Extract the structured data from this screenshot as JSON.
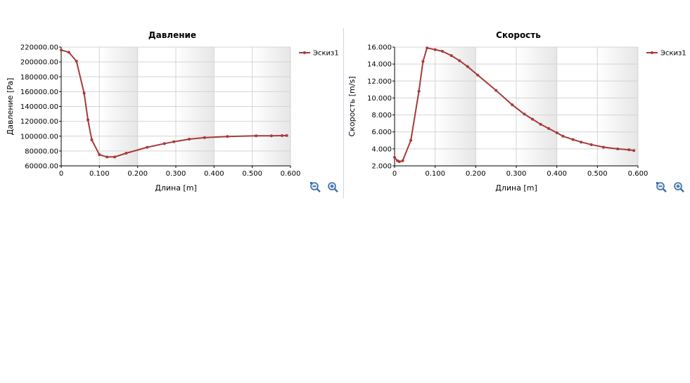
{
  "charts": [
    {
      "id": "pressure",
      "zoom_out_icon": "zoom-out-icon",
      "zoom_in_icon": "zoom-in-icon"
    },
    {
      "id": "velocity",
      "zoom_out_icon": "zoom-out-icon",
      "zoom_in_icon": "zoom-in-icon"
    }
  ],
  "colors": {
    "series": "#a83a3a",
    "grid": "#d4d4d4",
    "band": "#e6e6e6"
  },
  "chart_data": [
    {
      "type": "line",
      "title": "Давление",
      "xlabel": "Длина [m]",
      "ylabel": "Давление [Pa]",
      "xlim": [
        0,
        0.6
      ],
      "ylim": [
        60000,
        220000
      ],
      "xticks": [
        "0",
        "0.100",
        "0.200",
        "0.300",
        "0.400",
        "0.500",
        "0.600"
      ],
      "yticks": [
        "60000.00",
        "80000.00",
        "100000.00",
        "120000.00",
        "140000.00",
        "160000.00",
        "180000.00",
        "200000.00",
        "220000.00"
      ],
      "legend_position": "right",
      "series": [
        {
          "name": "Эскиз1",
          "x": [
            0,
            0.02,
            0.04,
            0.06,
            0.07,
            0.08,
            0.1,
            0.12,
            0.14,
            0.17,
            0.225,
            0.27,
            0.295,
            0.335,
            0.375,
            0.435,
            0.51,
            0.55,
            0.578,
            0.59
          ],
          "y": [
            216000,
            213000,
            201000,
            158000,
            122000,
            95000,
            75000,
            72000,
            72000,
            77000,
            85000,
            90000,
            92500,
            96000,
            98000,
            99500,
            100500,
            100500,
            100700,
            100800
          ]
        }
      ]
    },
    {
      "type": "line",
      "title": "Скорость",
      "xlabel": "Длина [m]",
      "ylabel": "Скорость [m/s]",
      "xlim": [
        0,
        0.6
      ],
      "ylim": [
        2,
        16
      ],
      "xticks": [
        "0",
        "0.100",
        "0.200",
        "0.300",
        "0.400",
        "0.500",
        "0.600"
      ],
      "yticks": [
        "2.000",
        "4.000",
        "6.000",
        "8.000",
        "10.000",
        "12.000",
        "14.000",
        "16.000"
      ],
      "legend_position": "right",
      "series": [
        {
          "name": "Эскиз1",
          "x": [
            0,
            0.007,
            0.012,
            0.02,
            0.04,
            0.06,
            0.07,
            0.08,
            0.1,
            0.118,
            0.14,
            0.16,
            0.18,
            0.205,
            0.25,
            0.29,
            0.32,
            0.34,
            0.36,
            0.38,
            0.4,
            0.415,
            0.44,
            0.46,
            0.485,
            0.515,
            0.55,
            0.578,
            0.59
          ],
          "y": [
            3.0,
            2.6,
            2.5,
            2.6,
            5.0,
            10.8,
            14.3,
            15.9,
            15.7,
            15.5,
            15.0,
            14.4,
            13.7,
            12.7,
            10.9,
            9.2,
            8.1,
            7.5,
            6.9,
            6.4,
            5.9,
            5.5,
            5.1,
            4.8,
            4.5,
            4.2,
            4.0,
            3.9,
            3.8
          ]
        }
      ]
    }
  ]
}
